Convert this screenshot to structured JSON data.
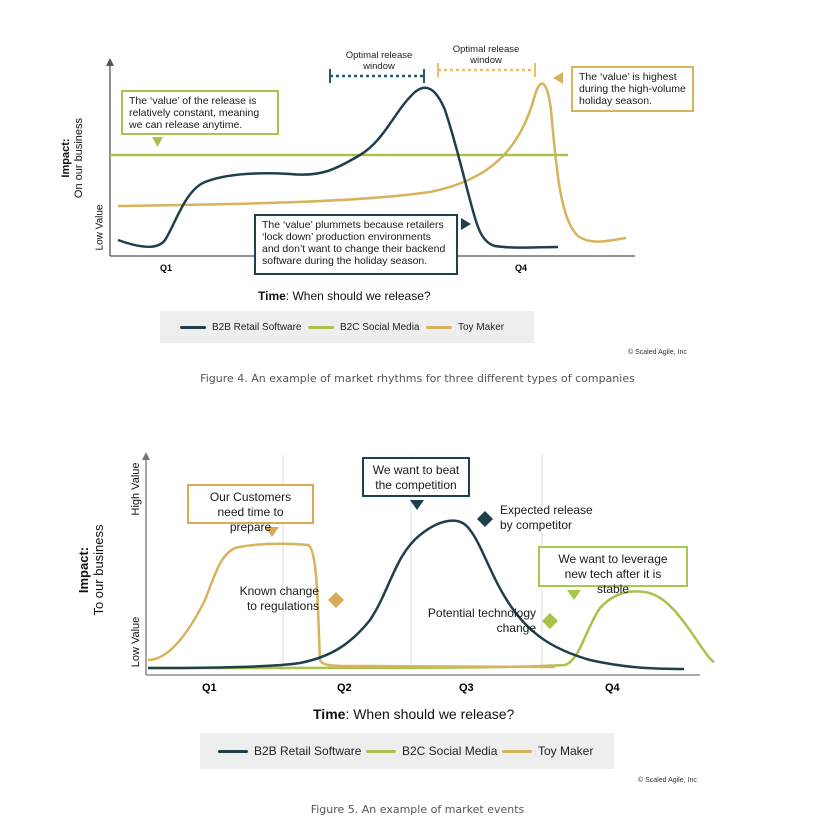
{
  "colors": {
    "b2b": "#1f3f4c",
    "b2c": "#a9c24c",
    "toy": "#d9b25c"
  },
  "figure4": {
    "y_label_bold": "Impact:",
    "y_label_sub": "On our business",
    "y_low": "Low Value",
    "x_ticks": [
      "Q1",
      "Q4"
    ],
    "x_title_bold": "Time",
    "x_title_rest": ": When should we release?",
    "window_b2b": "Optimal release window",
    "window_toy": "Optimal release window",
    "ann_b2c": "The ‘value’ of the release is relatively constant, meaning we can release anytime.",
    "ann_toy": "The ‘value’ is highest during the high-volume holiday season.",
    "ann_b2b": "The ‘value’ plummets because retailers ‘lock down’ production environments and don’t want to change their backend software during the holiday season.",
    "legend": [
      "B2B Retail Software",
      "B2C Social Media",
      "Toy Maker"
    ],
    "copyright": "© Scaled Agile, Inc",
    "caption": "Figure 4. An example of market rhythms for three different types of companies"
  },
  "figure5": {
    "y_label_bold": "Impact:",
    "y_label_sub": "To our business",
    "y_high": "High Value",
    "y_low": "Low Value",
    "x_ticks": [
      "Q1",
      "Q2",
      "Q3",
      "Q4"
    ],
    "x_title_bold": "Time",
    "x_title_rest": ": When should we release?",
    "ann_customers": "Our Customers need time to prepare",
    "ann_beat": "We want to beat the competition",
    "ann_leverage": "We want to leverage new tech after it is stable",
    "marker_regulations": "Known change to regulations",
    "marker_competitor": "Expected release by competitor",
    "marker_technology": "Potential technology change",
    "legend": [
      "B2B Retail Software",
      "B2C Social Media",
      "Toy Maker"
    ],
    "copyright": "© Scaled Agile, Inc",
    "caption": "Figure 5. An example of market events"
  }
}
